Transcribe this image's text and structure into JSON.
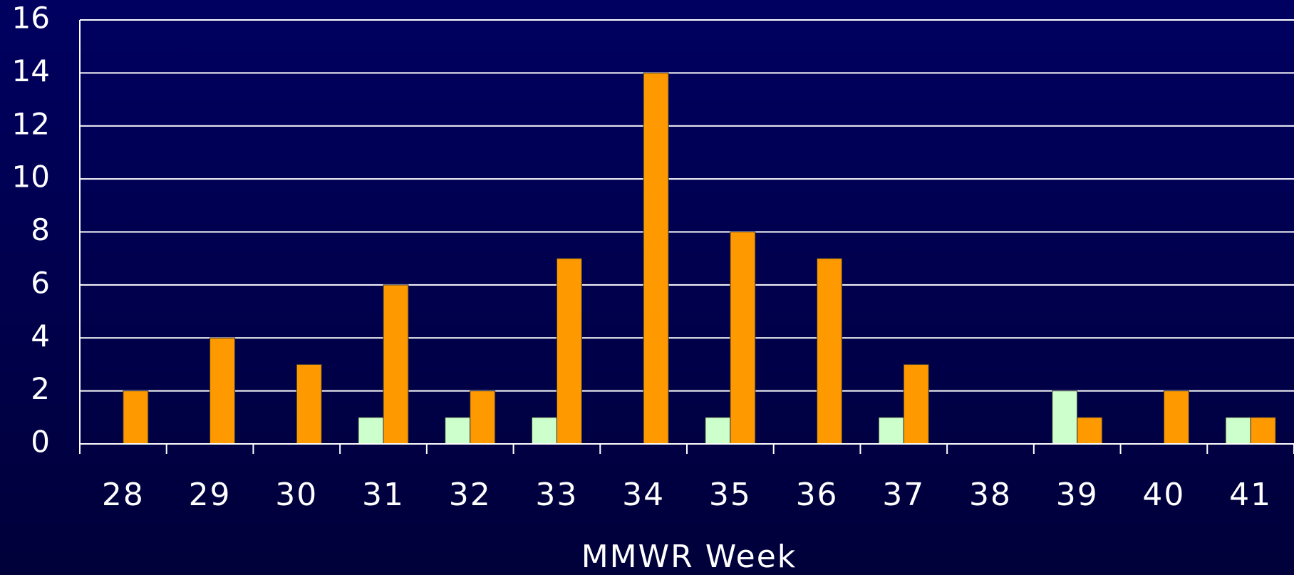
{
  "chart_data": {
    "type": "bar",
    "x_label": "MMWR Week",
    "categories": [
      "28",
      "29",
      "30",
      "31",
      "32",
      "33",
      "34",
      "35",
      "36",
      "37",
      "38",
      "39",
      "40",
      "41"
    ],
    "series": [
      {
        "color": "#ccffcc",
        "values": [
          0,
          0,
          0,
          1,
          1,
          1,
          0,
          1,
          0,
          1,
          0,
          2,
          0,
          1
        ]
      },
      {
        "color": "#ff9900",
        "values": [
          2,
          4,
          3,
          6,
          2,
          7,
          14,
          8,
          7,
          3,
          0,
          1,
          2,
          1
        ]
      }
    ],
    "ylim": [
      0,
      16
    ],
    "yticks": [
      0,
      2,
      4,
      6,
      8,
      10,
      12,
      14,
      16
    ],
    "grid": true
  }
}
